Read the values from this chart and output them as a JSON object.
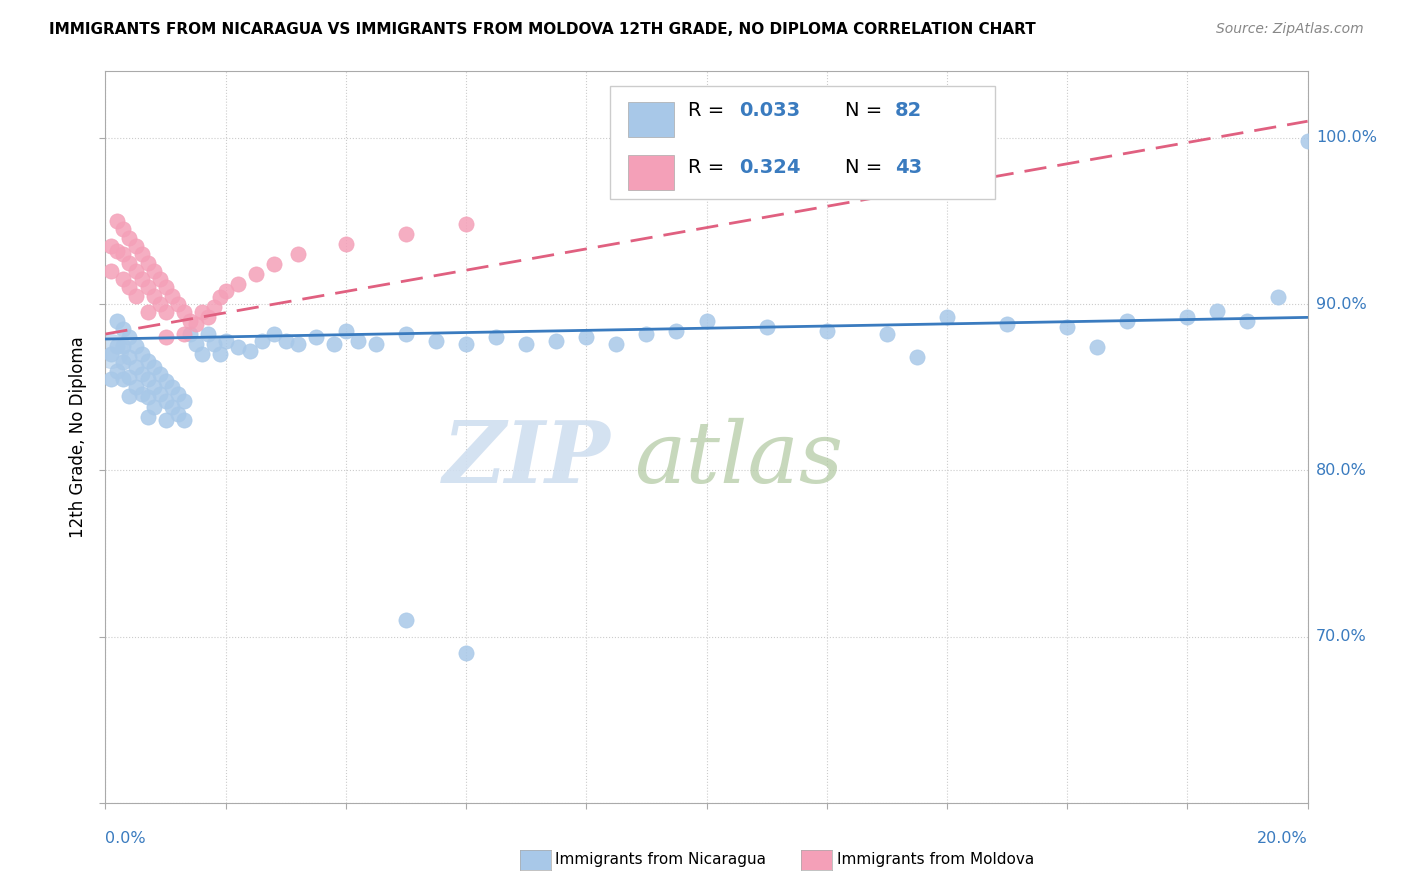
{
  "title": "IMMIGRANTS FROM NICARAGUA VS IMMIGRANTS FROM MOLDOVA 12TH GRADE, NO DIPLOMA CORRELATION CHART",
  "source": "Source: ZipAtlas.com",
  "watermark_zip": "ZIP",
  "watermark_atlas": "atlas",
  "legend_blue_r": "0.033",
  "legend_blue_n": "82",
  "legend_pink_r": "0.324",
  "legend_pink_n": "43",
  "blue_color": "#a8c8e8",
  "pink_color": "#f4a0b8",
  "blue_line_color": "#3a7bbf",
  "pink_line_color": "#e06080",
  "text_color": "#3a7bbf",
  "background_color": "#ffffff",
  "xmin": 0.0,
  "xmax": 0.2,
  "ymin": 0.6,
  "ymax": 1.04,
  "blue_scatter_x": [
    0.001,
    0.001,
    0.002,
    0.002,
    0.002,
    0.003,
    0.003,
    0.003,
    0.003,
    0.004,
    0.004,
    0.004,
    0.004,
    0.005,
    0.005,
    0.005,
    0.006,
    0.006,
    0.006,
    0.007,
    0.007,
    0.007,
    0.007,
    0.008,
    0.008,
    0.008,
    0.009,
    0.009,
    0.01,
    0.01,
    0.01,
    0.011,
    0.011,
    0.012,
    0.012,
    0.013,
    0.013,
    0.014,
    0.015,
    0.016,
    0.017,
    0.018,
    0.019,
    0.02,
    0.022,
    0.024,
    0.026,
    0.028,
    0.03,
    0.032,
    0.035,
    0.038,
    0.04,
    0.042,
    0.045,
    0.05,
    0.055,
    0.06,
    0.065,
    0.07,
    0.075,
    0.08,
    0.085,
    0.09,
    0.095,
    0.1,
    0.11,
    0.12,
    0.13,
    0.14,
    0.15,
    0.16,
    0.17,
    0.18,
    0.185,
    0.19,
    0.195,
    0.2,
    0.135,
    0.165,
    0.05,
    0.06
  ],
  "blue_scatter_y": [
    0.87,
    0.855,
    0.89,
    0.875,
    0.86,
    0.885,
    0.875,
    0.865,
    0.855,
    0.88,
    0.868,
    0.856,
    0.845,
    0.875,
    0.862,
    0.85,
    0.87,
    0.858,
    0.846,
    0.866,
    0.855,
    0.844,
    0.832,
    0.862,
    0.85,
    0.838,
    0.858,
    0.846,
    0.854,
    0.842,
    0.83,
    0.85,
    0.838,
    0.846,
    0.834,
    0.842,
    0.83,
    0.882,
    0.876,
    0.87,
    0.882,
    0.876,
    0.87,
    0.878,
    0.874,
    0.872,
    0.878,
    0.882,
    0.878,
    0.876,
    0.88,
    0.876,
    0.884,
    0.878,
    0.876,
    0.882,
    0.878,
    0.876,
    0.88,
    0.876,
    0.878,
    0.88,
    0.876,
    0.882,
    0.884,
    0.89,
    0.886,
    0.884,
    0.882,
    0.892,
    0.888,
    0.886,
    0.89,
    0.892,
    0.896,
    0.89,
    0.904,
    0.998,
    0.868,
    0.874,
    0.71,
    0.69
  ],
  "pink_scatter_x": [
    0.001,
    0.001,
    0.002,
    0.002,
    0.003,
    0.003,
    0.003,
    0.004,
    0.004,
    0.004,
    0.005,
    0.005,
    0.005,
    0.006,
    0.006,
    0.007,
    0.007,
    0.007,
    0.008,
    0.008,
    0.009,
    0.009,
    0.01,
    0.01,
    0.01,
    0.011,
    0.012,
    0.013,
    0.013,
    0.014,
    0.015,
    0.016,
    0.017,
    0.018,
    0.019,
    0.02,
    0.022,
    0.025,
    0.028,
    0.032,
    0.04,
    0.05,
    0.06
  ],
  "pink_scatter_y": [
    0.935,
    0.92,
    0.95,
    0.932,
    0.945,
    0.93,
    0.915,
    0.94,
    0.925,
    0.91,
    0.935,
    0.92,
    0.905,
    0.93,
    0.915,
    0.925,
    0.91,
    0.895,
    0.92,
    0.905,
    0.915,
    0.9,
    0.91,
    0.895,
    0.88,
    0.905,
    0.9,
    0.895,
    0.882,
    0.89,
    0.888,
    0.895,
    0.892,
    0.898,
    0.904,
    0.908,
    0.912,
    0.918,
    0.924,
    0.93,
    0.936,
    0.942,
    0.948
  ],
  "blue_line_x": [
    0.0,
    0.2
  ],
  "blue_line_y": [
    0.879,
    0.892
  ],
  "pink_line_x": [
    0.0,
    0.2
  ],
  "pink_line_y": [
    0.882,
    1.01
  ],
  "ylabel": "12th Grade, No Diploma"
}
